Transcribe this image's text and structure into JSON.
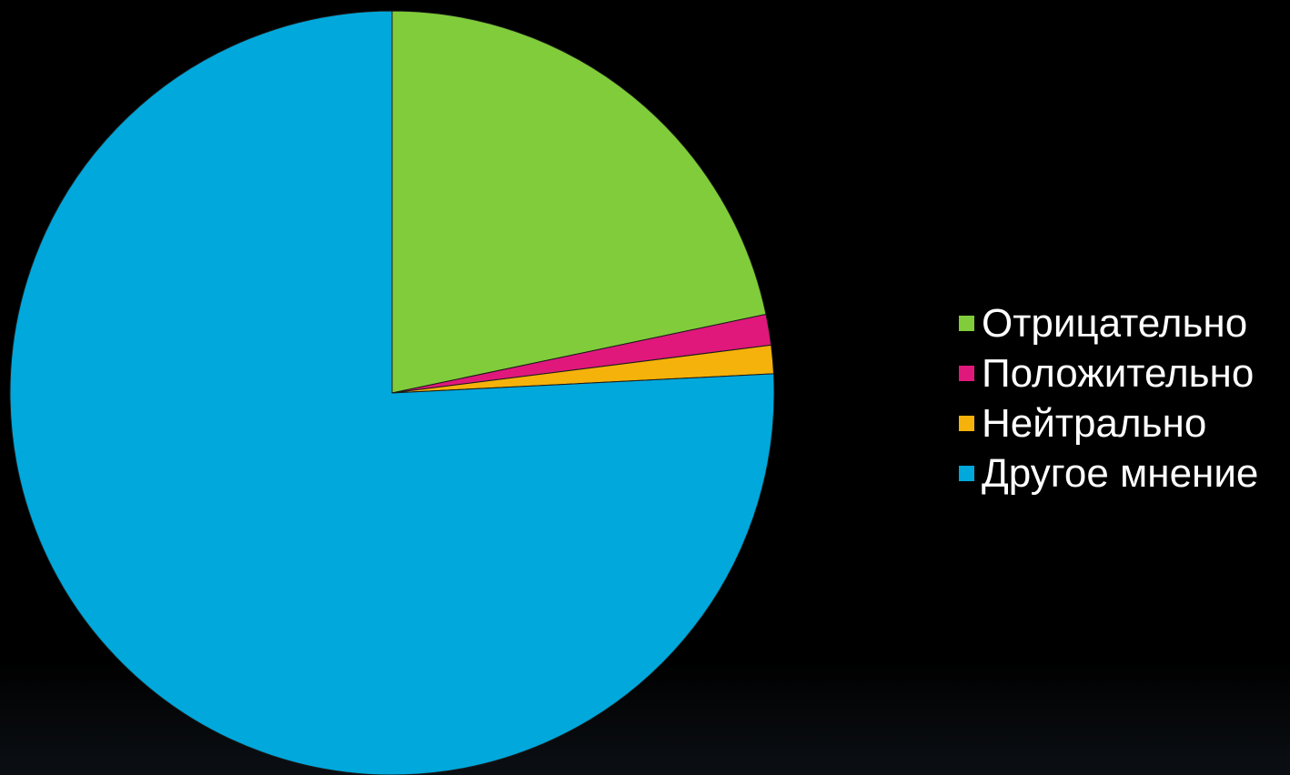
{
  "chart_data": {
    "type": "pie",
    "title": "",
    "series": [
      {
        "labels": [
          "Отрицательно",
          "Положительно",
          "Нейтрально",
          "Другое мнение"
        ],
        "values": [
          21.7,
          1.3,
          1.2,
          75.8
        ],
        "colors": [
          "#80cc3a",
          "#e0187c",
          "#f5b20a",
          "#00a8dc"
        ]
      }
    ],
    "start_angle": "12 o'clock",
    "direction": "clockwise",
    "legend": {
      "placement": "right",
      "items": [
        {
          "label": "Отрицательно",
          "color": "#80cc3a"
        },
        {
          "label": "Положительно",
          "color": "#e0187c"
        },
        {
          "label": "Нейтрально",
          "color": "#f5b20a"
        },
        {
          "label": "Другое мнение",
          "color": "#00a8dc"
        }
      ]
    }
  },
  "background_color": "#000000"
}
